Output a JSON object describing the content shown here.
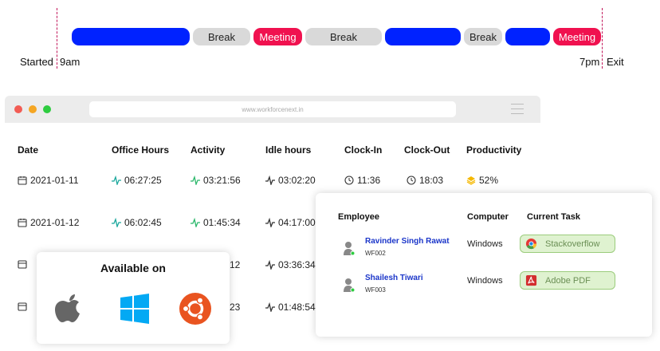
{
  "timeline": {
    "segments": [
      {
        "type": "work",
        "label": ""
      },
      {
        "type": "break",
        "label": "Break"
      },
      {
        "type": "meeting",
        "label": "Meeting"
      },
      {
        "type": "break",
        "label": "Break"
      },
      {
        "type": "work",
        "label": ""
      },
      {
        "type": "break",
        "label": "Break"
      },
      {
        "type": "work",
        "label": ""
      },
      {
        "type": "meeting",
        "label": "Meeting"
      }
    ],
    "start_label": "Started",
    "start_time": "9am",
    "end_time": "7pm",
    "end_label": "Exit"
  },
  "browser": {
    "url": "www.workforcenext.in",
    "dot_colors": [
      "#f25c54",
      "#f5a623",
      "#2ecc40"
    ]
  },
  "table": {
    "headers": [
      "Date",
      "Office Hours",
      "Activity",
      "Idle hours",
      "Clock-In",
      "Clock-Out",
      "Productivity"
    ],
    "rows": [
      {
        "date": "2021-01-11",
        "office": "06:27:25",
        "activity": "03:21:56",
        "idle": "03:02:20",
        "clock_in": "11:36",
        "clock_out": "18:03",
        "productivity": "52%"
      },
      {
        "date": "2021-01-12",
        "office": "06:02:45",
        "activity": "01:45:34",
        "idle": "04:17:00"
      },
      {
        "activity": "12",
        "idle": "03:36:34"
      },
      {
        "activity": "23",
        "idle": "01:48:54"
      }
    ]
  },
  "employees_card": {
    "headers": {
      "employee": "Employee",
      "computer": "Computer",
      "task": "Current Task"
    },
    "rows": [
      {
        "name": "Ravinder Singh Rawat",
        "id": "WF002",
        "computer": "Windows",
        "task": "Stackoverflow",
        "task_icon": "chrome-icon"
      },
      {
        "name": "Shailesh Tiwari",
        "id": "WF003",
        "computer": "Windows",
        "task": "Adobe PDF",
        "task_icon": "adobe-pdf-icon"
      }
    ]
  },
  "available": {
    "title": "Available on",
    "platforms": [
      "apple-icon",
      "windows-icon",
      "ubuntu-icon"
    ]
  },
  "colors": {
    "work": "#0022ff",
    "break": "#d9d9d9",
    "meeting": "#f0114f",
    "accent_teal": "#1aa79c",
    "link_blue": "#1a35c9"
  }
}
